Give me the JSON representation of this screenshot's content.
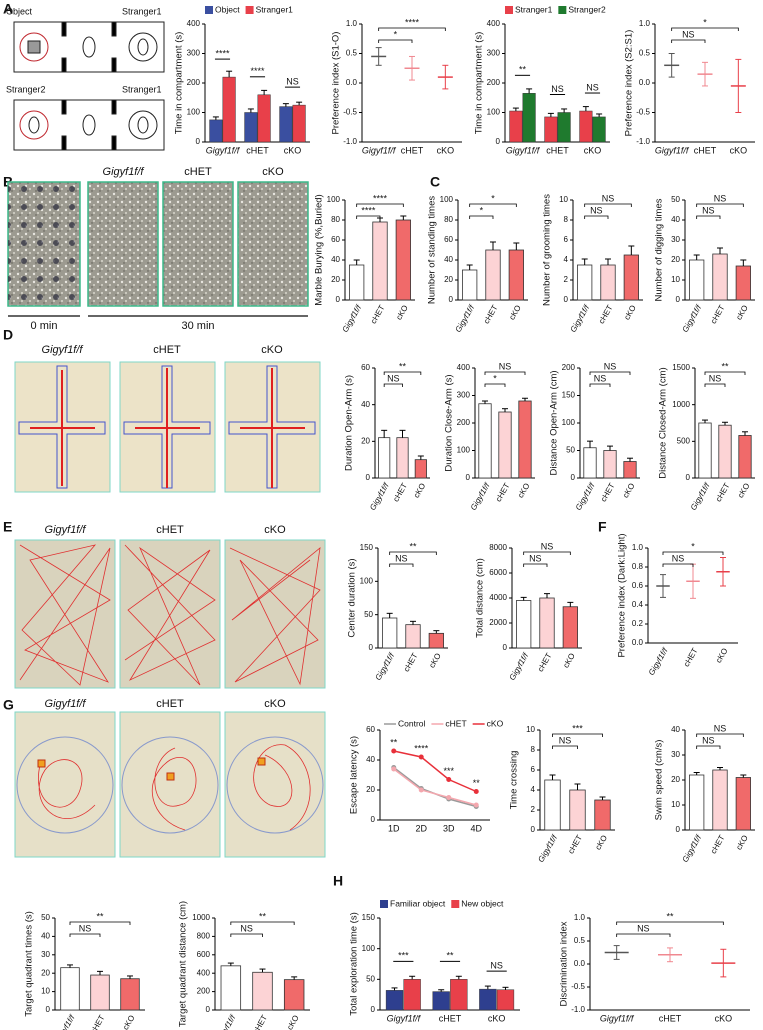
{
  "labels": {
    "panels": [
      "A",
      "B",
      "C",
      "D",
      "E",
      "F",
      "G",
      "H"
    ],
    "schematic": [
      "Object",
      "Stranger1",
      "Stranger2",
      "Stranger1"
    ],
    "photo_titles": [
      "Gigyf1f/f",
      "cHET",
      "cKO"
    ],
    "times": [
      "0 min",
      "30 min"
    ]
  },
  "chart_data": [
    {
      "type": "grouped_bar",
      "ylabel": "Time in compartment (s)",
      "categories": [
        "Gigyf1f/f",
        "cHET",
        "cKO"
      ],
      "legend": "top-left",
      "series": [
        {
          "name": "Object",
          "color": "#3a4fa0",
          "values": [
            75,
            100,
            120
          ],
          "errors": [
            10,
            12,
            10
          ]
        },
        {
          "name": "Stranger1",
          "color": "#e8404a",
          "values": [
            220,
            160,
            125
          ],
          "errors": [
            20,
            15,
            10
          ]
        }
      ],
      "ylim": [
        0,
        400
      ],
      "yticks": [
        0,
        100,
        200,
        300,
        400
      ],
      "group_significance": [
        "****",
        "****",
        "NS"
      ]
    },
    {
      "type": "dot",
      "ylabel": "Preference index (S1-O)",
      "categories": [
        "Gigyf1f/f",
        "cHET",
        "cKO"
      ],
      "values": [
        0.45,
        0.25,
        0.1
      ],
      "errors": [
        0.15,
        0.2,
        0.2
      ],
      "colors": [
        "#555555",
        "#f08890",
        "#e8404a"
      ],
      "ylim": [
        -1,
        1
      ],
      "yticks": [
        {
          "value": -1,
          "label": "-1.0"
        },
        {
          "value": -0.5,
          "label": "-0.5"
        },
        {
          "value": 0,
          "label": "0.0"
        },
        {
          "value": 0.5,
          "label": "0.5"
        },
        {
          "value": 1,
          "label": "1.0"
        }
      ],
      "significance": [
        {
          "between": [
            "Gigyf1f/f",
            "cHET"
          ],
          "label": "*"
        },
        {
          "between": [
            "Gigyf1f/f",
            "cKO"
          ],
          "label": "****"
        }
      ]
    },
    {
      "type": "grouped_bar",
      "ylabel": "Time in compartment (s)",
      "categories": [
        "Gigyf1f/f",
        "cHET",
        "cKO"
      ],
      "legend": "top-left",
      "series": [
        {
          "name": "Stranger1",
          "color": "#e8404a",
          "values": [
            105,
            85,
            105
          ],
          "errors": [
            10,
            12,
            15
          ]
        },
        {
          "name": "Stranger2",
          "color": "#1f7a2e",
          "values": [
            165,
            100,
            85
          ],
          "errors": [
            15,
            12,
            10
          ]
        }
      ],
      "ylim": [
        0,
        400
      ],
      "yticks": [
        0,
        100,
        200,
        300,
        400
      ],
      "group_significance": [
        "**",
        "NS",
        "NS"
      ]
    },
    {
      "type": "dot",
      "ylabel": "Preference index (S2:S1)",
      "categories": [
        "Gigyf1f/f",
        "cHET",
        "cKO"
      ],
      "values": [
        0.3,
        0.15,
        -0.05
      ],
      "errors": [
        0.2,
        0.2,
        0.45
      ],
      "colors": [
        "#555555",
        "#f08890",
        "#e8404a"
      ],
      "ylim": [
        -1,
        1
      ],
      "yticks": [
        {
          "value": -1,
          "label": "-1.0"
        },
        {
          "value": -0.5,
          "label": "-0.5"
        },
        {
          "value": 0,
          "label": "0.0"
        },
        {
          "value": 0.5,
          "label": "0.5"
        },
        {
          "value": 1,
          "label": "1.0"
        }
      ],
      "significance": [
        {
          "between": [
            "Gigyf1f/f",
            "cHET"
          ],
          "label": "NS"
        },
        {
          "between": [
            "Gigyf1f/f",
            "cKO"
          ],
          "label": "*"
        }
      ]
    },
    {
      "type": "bar",
      "ylabel": "Marble Burying (%,Buried)",
      "categories": [
        "Gigyf1f/f",
        "cHET",
        "cKO"
      ],
      "values": [
        35,
        78,
        80
      ],
      "errors": [
        5,
        4,
        4
      ],
      "colors": [
        "#ffffff",
        "#fcd3d5",
        "#f06a6a"
      ],
      "ylim": [
        0,
        100
      ],
      "yticks": [
        0,
        20,
        40,
        60,
        80,
        100
      ],
      "significance": [
        {
          "between": [
            "Gigyf1f/f",
            "cHET"
          ],
          "label": "****"
        },
        {
          "between": [
            "Gigyf1f/f",
            "cKO"
          ],
          "label": "****"
        }
      ]
    },
    {
      "type": "bar",
      "ylabel": "Number of standing times",
      "categories": [
        "Gigyf1f/f",
        "cHET",
        "cKO"
      ],
      "values": [
        30,
        50,
        50
      ],
      "errors": [
        5,
        8,
        7
      ],
      "colors": [
        "#ffffff",
        "#fcd3d5",
        "#f06a6a"
      ],
      "ylim": [
        0,
        100
      ],
      "yticks": [
        0,
        20,
        40,
        60,
        80,
        100
      ],
      "significance": [
        {
          "between": [
            "Gigyf1f/f",
            "cHET"
          ],
          "label": "*"
        },
        {
          "between": [
            "Gigyf1f/f",
            "cKO"
          ],
          "label": "*"
        }
      ]
    },
    {
      "type": "bar",
      "ylabel": "Number of grooming times",
      "categories": [
        "Gigyf1f/f",
        "cHET",
        "cKO"
      ],
      "values": [
        3.5,
        3.5,
        4.5
      ],
      "errors": [
        0.6,
        0.6,
        0.9
      ],
      "colors": [
        "#ffffff",
        "#fcd3d5",
        "#f06a6a"
      ],
      "ylim": [
        0,
        10
      ],
      "yticks": [
        0,
        2,
        4,
        6,
        8,
        10
      ],
      "significance": [
        {
          "between": [
            "Gigyf1f/f",
            "cHET"
          ],
          "label": "NS"
        },
        {
          "between": [
            "Gigyf1f/f",
            "cKO"
          ],
          "label": "NS"
        }
      ]
    },
    {
      "type": "bar",
      "ylabel": "Number of digging times",
      "categories": [
        "Gigyf1f/f",
        "cHET",
        "cKO"
      ],
      "values": [
        20,
        23,
        17
      ],
      "errors": [
        2.5,
        3,
        3
      ],
      "colors": [
        "#ffffff",
        "#fcd3d5",
        "#f06a6a"
      ],
      "ylim": [
        0,
        50
      ],
      "yticks": [
        0,
        10,
        20,
        30,
        40,
        50
      ],
      "significance": [
        {
          "between": [
            "Gigyf1f/f",
            "cHET"
          ],
          "label": "NS"
        },
        {
          "between": [
            "Gigyf1f/f",
            "cKO"
          ],
          "label": "NS"
        }
      ]
    },
    {
      "type": "bar",
      "ylabel": "Duration Open-Arm (s)",
      "categories": [
        "Gigyf1f/f",
        "cHET",
        "cKO"
      ],
      "values": [
        22,
        22,
        10
      ],
      "errors": [
        4,
        4,
        2
      ],
      "colors": [
        "#ffffff",
        "#fcd3d5",
        "#f06a6a"
      ],
      "ylim": [
        0,
        60
      ],
      "yticks": [
        0,
        20,
        40,
        60
      ],
      "significance": [
        {
          "between": [
            "Gigyf1f/f",
            "cHET"
          ],
          "label": "NS"
        },
        {
          "between": [
            "Gigyf1f/f",
            "cKO"
          ],
          "label": "**"
        }
      ]
    },
    {
      "type": "bar",
      "ylabel": "Duration Close-Arm (s)",
      "categories": [
        "Gigyf1f/f",
        "cHET",
        "cKO"
      ],
      "values": [
        270,
        240,
        280
      ],
      "errors": [
        10,
        12,
        10
      ],
      "colors": [
        "#ffffff",
        "#fcd3d5",
        "#f06a6a"
      ],
      "ylim": [
        0,
        400
      ],
      "yticks": [
        0,
        100,
        200,
        300,
        400
      ],
      "significance": [
        {
          "between": [
            "Gigyf1f/f",
            "cHET"
          ],
          "label": "*"
        },
        {
          "between": [
            "Gigyf1f/f",
            "cKO"
          ],
          "label": "NS"
        }
      ]
    },
    {
      "type": "bar",
      "ylabel": "Distance Open-Arm (cm)",
      "categories": [
        "Gigyf1f/f",
        "cHET",
        "cKO"
      ],
      "values": [
        55,
        50,
        30
      ],
      "errors": [
        12,
        8,
        6
      ],
      "colors": [
        "#ffffff",
        "#fcd3d5",
        "#f06a6a"
      ],
      "ylim": [
        0,
        200
      ],
      "yticks": [
        0,
        50,
        100,
        150,
        200
      ],
      "significance": [
        {
          "between": [
            "Gigyf1f/f",
            "cHET"
          ],
          "label": "NS"
        },
        {
          "between": [
            "Gigyf1f/f",
            "cKO"
          ],
          "label": "NS"
        }
      ]
    },
    {
      "type": "bar",
      "ylabel": "Distance Closed-Arm (cm)",
      "categories": [
        "Gigyf1f/f",
        "cHET",
        "cKO"
      ],
      "values": [
        750,
        720,
        580
      ],
      "errors": [
        40,
        40,
        50
      ],
      "colors": [
        "#ffffff",
        "#fcd3d5",
        "#f06a6a"
      ],
      "ylim": [
        0,
        1500
      ],
      "yticks": [
        0,
        500,
        1000,
        1500
      ],
      "significance": [
        {
          "between": [
            "Gigyf1f/f",
            "cHET"
          ],
          "label": "NS"
        },
        {
          "between": [
            "Gigyf1f/f",
            "cKO"
          ],
          "label": "**"
        }
      ]
    },
    {
      "type": "bar",
      "ylabel": "Center duration (s)",
      "categories": [
        "Gigyf1f/f",
        "cHET",
        "cKO"
      ],
      "values": [
        45,
        35,
        22
      ],
      "errors": [
        7,
        5,
        4
      ],
      "colors": [
        "#ffffff",
        "#fcd3d5",
        "#f06a6a"
      ],
      "ylim": [
        0,
        150
      ],
      "yticks": [
        0,
        50,
        100,
        150
      ],
      "significance": [
        {
          "between": [
            "Gigyf1f/f",
            "cHET"
          ],
          "label": "NS"
        },
        {
          "between": [
            "Gigyf1f/f",
            "cKO"
          ],
          "label": "**"
        }
      ]
    },
    {
      "type": "bar",
      "ylabel": "Total distance (cm)",
      "categories": [
        "Gigyf1f/f",
        "cHET",
        "cKO"
      ],
      "values": [
        3800,
        4000,
        3300
      ],
      "errors": [
        250,
        350,
        350
      ],
      "colors": [
        "#ffffff",
        "#fcd3d5",
        "#f06a6a"
      ],
      "ylim": [
        0,
        8000
      ],
      "yticks": [
        0,
        2000,
        4000,
        6000,
        8000
      ],
      "significance": [
        {
          "between": [
            "Gigyf1f/f",
            "cHET"
          ],
          "label": "NS"
        },
        {
          "between": [
            "Gigyf1f/f",
            "cKO"
          ],
          "label": "NS"
        }
      ]
    },
    {
      "type": "dot",
      "ylabel": "Preference index (Dark:Light)",
      "categories": [
        "Gigyf1f/f",
        "cHET",
        "cKO"
      ],
      "values": [
        0.6,
        0.65,
        0.75
      ],
      "errors": [
        0.12,
        0.18,
        0.15
      ],
      "colors": [
        "#555555",
        "#f08890",
        "#e8404a"
      ],
      "ylim": [
        0,
        1
      ],
      "yticks": [
        {
          "value": 0,
          "label": "0.0"
        },
        0.2,
        0.4,
        0.6,
        0.8,
        {
          "value": 1,
          "label": "1.0"
        }
      ],
      "significance": [
        {
          "between": [
            "Gigyf1f/f",
            "cHET"
          ],
          "label": "NS"
        },
        {
          "between": [
            "Gigyf1f/f",
            "cKO"
          ],
          "label": "*"
        }
      ]
    },
    {
      "type": "line",
      "ylabel": "Escape latency (s)",
      "x": [
        "1D",
        "2D",
        "3D",
        "4D"
      ],
      "series": [
        {
          "name": "Control",
          "color": "#9a9a9a",
          "values": [
            35,
            21,
            14,
            9
          ]
        },
        {
          "name": "cHET",
          "color": "#f4a7ae",
          "values": [
            34,
            20,
            15,
            10
          ]
        },
        {
          "name": "cKO",
          "color": "#e8303a",
          "values": [
            46,
            42,
            27,
            19
          ]
        }
      ],
      "ylim": [
        0,
        60
      ],
      "yticks": [
        0,
        20,
        40,
        60
      ],
      "point_labels": [
        "**",
        "****",
        "***",
        "**"
      ]
    },
    {
      "type": "bar",
      "ylabel": "Time crossing",
      "categories": [
        "Gigyf1f/f",
        "cHET",
        "cKO"
      ],
      "values": [
        5,
        4,
        3
      ],
      "errors": [
        0.5,
        0.6,
        0.3
      ],
      "colors": [
        "#ffffff",
        "#fcd3d5",
        "#f06a6a"
      ],
      "ylim": [
        0,
        10
      ],
      "yticks": [
        0,
        2,
        4,
        6,
        8,
        10
      ],
      "significance": [
        {
          "between": [
            "Gigyf1f/f",
            "cHET"
          ],
          "label": "NS"
        },
        {
          "between": [
            "Gigyf1f/f",
            "cKO"
          ],
          "label": "***"
        }
      ]
    },
    {
      "type": "bar",
      "ylabel": "Swim speed (cm/s)",
      "categories": [
        "Gigyf1f/f",
        "cHET",
        "cKO"
      ],
      "values": [
        22,
        24,
        21
      ],
      "errors": [
        1,
        1,
        1
      ],
      "colors": [
        "#ffffff",
        "#fcd3d5",
        "#f06a6a"
      ],
      "ylim": [
        0,
        40
      ],
      "yticks": [
        0,
        10,
        20,
        30,
        40
      ],
      "significance": [
        {
          "between": [
            "Gigyf1f/f",
            "cHET"
          ],
          "label": "NS"
        },
        {
          "between": [
            "Gigyf1f/f",
            "cKO"
          ],
          "label": "NS"
        }
      ]
    },
    {
      "type": "bar",
      "ylabel": "Target quadrant  times (s)",
      "categories": [
        "Gigyf1f/f",
        "cHET",
        "cKO"
      ],
      "values": [
        23,
        19,
        17
      ],
      "errors": [
        1.5,
        2,
        1.5
      ],
      "colors": [
        "#ffffff",
        "#fcd3d5",
        "#f06a6a"
      ],
      "ylim": [
        0,
        50
      ],
      "yticks": [
        0,
        10,
        20,
        30,
        40,
        50
      ],
      "significance": [
        {
          "between": [
            "Gigyf1f/f",
            "cHET"
          ],
          "label": "NS"
        },
        {
          "between": [
            "Gigyf1f/f",
            "cKO"
          ],
          "label": "**"
        }
      ]
    },
    {
      "type": "bar",
      "ylabel": "Target quadrant distance (cm)",
      "categories": [
        "Gigyf1f/f",
        "cHET",
        "cKO"
      ],
      "values": [
        480,
        410,
        330
      ],
      "errors": [
        30,
        35,
        30
      ],
      "colors": [
        "#ffffff",
        "#fcd3d5",
        "#f06a6a"
      ],
      "ylim": [
        0,
        1000
      ],
      "yticks": [
        0,
        200,
        400,
        600,
        800,
        1000
      ],
      "significance": [
        {
          "between": [
            "Gigyf1f/f",
            "cHET"
          ],
          "label": "NS"
        },
        {
          "between": [
            "Gigyf1f/f",
            "cKO"
          ],
          "label": "**"
        }
      ]
    },
    {
      "type": "grouped_bar",
      "ylabel": "Total exploration time (s)",
      "categories": [
        "Gigyf1f/f",
        "cHET",
        "cKO"
      ],
      "legend": "top-left",
      "series": [
        {
          "name": "Familiar object",
          "color": "#2e3f8f",
          "values": [
            32,
            30,
            34
          ],
          "errors": [
            4,
            3,
            5
          ]
        },
        {
          "name": "New object",
          "color": "#e8404a",
          "values": [
            50,
            50,
            33
          ],
          "errors": [
            5,
            5,
            4
          ]
        }
      ],
      "ylim": [
        0,
        150
      ],
      "yticks": [
        0,
        50,
        100,
        150
      ],
      "group_significance": [
        "***",
        "**",
        "NS"
      ]
    },
    {
      "type": "dot",
      "ylabel": "Discrimination index",
      "categories": [
        "Gigyf1f/f",
        "cHET",
        "cKO"
      ],
      "values": [
        0.25,
        0.2,
        0.02
      ],
      "errors": [
        0.15,
        0.15,
        0.3
      ],
      "colors": [
        "#555555",
        "#f08890",
        "#e8404a"
      ],
      "ylim": [
        -1,
        1
      ],
      "yticks": [
        {
          "value": -1,
          "label": "-1.0"
        },
        {
          "value": -0.5,
          "label": "-0.5"
        },
        {
          "value": 0,
          "label": "0.0"
        },
        {
          "value": 0.5,
          "label": "0.5"
        },
        {
          "value": 1,
          "label": "1.0"
        }
      ],
      "significance": [
        {
          "between": [
            "Gigyf1f/f",
            "cHET"
          ],
          "label": "NS"
        },
        {
          "between": [
            "Gigyf1f/f",
            "cKO"
          ],
          "label": "**"
        }
      ]
    }
  ]
}
